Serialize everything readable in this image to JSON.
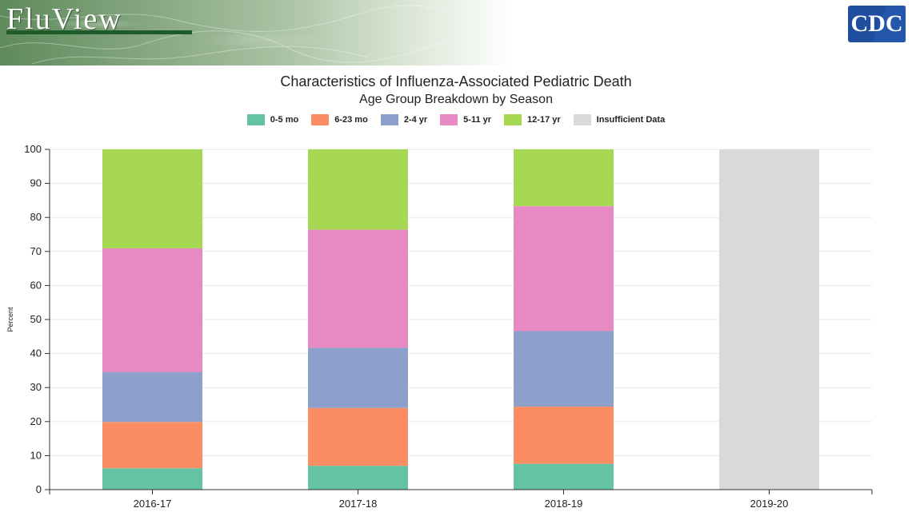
{
  "header": {
    "logo_text": "FluView",
    "agency_logo_text": "CDC",
    "colors": {
      "logo_underline": "#1f5a2a",
      "agency_logo_bg": "#1f4e9e"
    }
  },
  "chart_data": {
    "type": "bar",
    "stacked": true,
    "title": "Characteristics of Influenza-Associated Pediatric Death",
    "subtitle": "Age Group Breakdown by Season",
    "xlabel": "",
    "ylabel": "Percent",
    "ylim": [
      0,
      100
    ],
    "yticks": [
      0,
      10,
      20,
      30,
      40,
      50,
      60,
      70,
      80,
      90,
      100
    ],
    "grid": true,
    "legend_position": "top-center",
    "categories": [
      "2016-17",
      "2017-18",
      "2018-19",
      "2019-20"
    ],
    "series": [
      {
        "name": "0-5 mo",
        "color": "#66c2a5",
        "values": [
          6.3,
          7.0,
          7.6,
          0
        ]
      },
      {
        "name": "6-23 mo",
        "color": "#fc8d62",
        "values": [
          13.6,
          17.0,
          16.8,
          0
        ]
      },
      {
        "name": "2-4 yr",
        "color": "#8da0cb",
        "values": [
          14.6,
          17.7,
          22.2,
          0
        ]
      },
      {
        "name": "5-11 yr",
        "color": "#e78ac3",
        "values": [
          36.4,
          34.7,
          36.7,
          0
        ]
      },
      {
        "name": "12-17 yr",
        "color": "#a6d854",
        "values": [
          29.1,
          23.6,
          16.7,
          0
        ]
      },
      {
        "name": "Insufficient Data",
        "color": "#d9d9d9",
        "values": [
          0,
          0,
          0,
          100
        ]
      }
    ]
  }
}
